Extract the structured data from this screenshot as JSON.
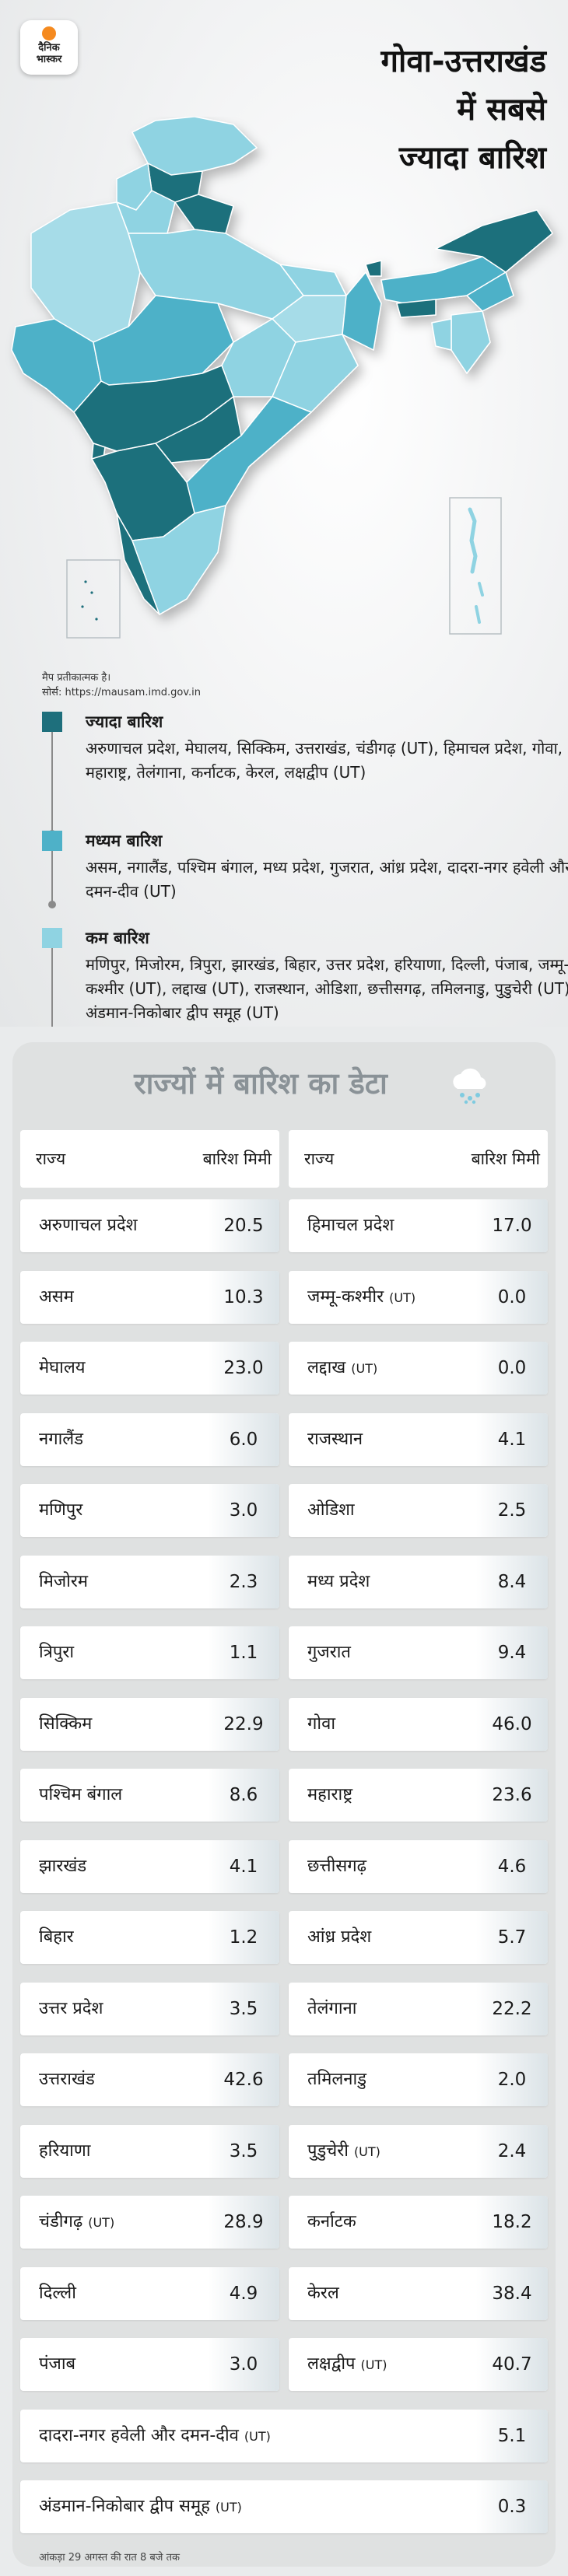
{
  "brand": {
    "line1": "दैनिक",
    "line2": "भास्कर"
  },
  "headline": [
    "गोवा-उत्तराखंड",
    "में सबसे",
    "ज्यादा बारिश"
  ],
  "map_note": "मैप प्रतीकात्मक है।",
  "map_source": "सोर्स: https://mausam.imd.gov.in",
  "legend": [
    {
      "title": "ज्यादा बारिश",
      "color": "#1e6f7c",
      "text": "अरुणाचल प्रदेश, मेघालय, सिक्किम, उत्तराखंड, चंडीगढ़ (UT), हिमाचल प्रदेश, गोवा, महाराष्ट्र, तेलंगाना, कर्नाटक, केरल, लक्षद्वीप (UT)"
    },
    {
      "title": "मध्यम बारिश",
      "color": "#4eb1c8",
      "text": "असम, नगालैंड, पश्चिम बंगाल, मध्य प्रदेश, गुजरात, आंध्र प्रदेश, दादरा-नगर हवेली और दमन-दीव (UT)"
    },
    {
      "title": "कम बारिश",
      "color": "#8fd3e2",
      "text": "मणिपुर, मिजोरम, त्रिपुरा, झारखंड, बिहार, उत्तर प्रदेश, हरियाणा, दिल्ली, पंजाब, जम्मू-कश्मीर (UT), लद्दाख (UT), राजस्थान, ओडिशा, छत्तीसगढ़, तमिलनाडु, पुडुचेरी (UT), अंडमान-निकोबार द्वीप समूह (UT)"
    }
  ],
  "table": {
    "title": "राज्यों में बारिश का डेटा",
    "col_state": "राज्य",
    "col_rain": "बारिश मिमी",
    "left": [
      {
        "name": "अरुणाचल प्रदेश",
        "ut": "",
        "value": "20.5"
      },
      {
        "name": "असम",
        "ut": "",
        "value": "10.3"
      },
      {
        "name": "मेघालय",
        "ut": "",
        "value": "23.0"
      },
      {
        "name": "नगालैंड",
        "ut": "",
        "value": "6.0"
      },
      {
        "name": "मणिपुर",
        "ut": "",
        "value": "3.0"
      },
      {
        "name": "मिजोरम",
        "ut": "",
        "value": "2.3"
      },
      {
        "name": "त्रिपुरा",
        "ut": "",
        "value": "1.1"
      },
      {
        "name": "सिक्किम",
        "ut": "",
        "value": "22.9"
      },
      {
        "name": "पश्चिम बंगाल",
        "ut": "",
        "value": "8.6"
      },
      {
        "name": "झारखंड",
        "ut": "",
        "value": "4.1"
      },
      {
        "name": "बिहार",
        "ut": "",
        "value": "1.2"
      },
      {
        "name": "उत्तर प्रदेश",
        "ut": "",
        "value": "3.5"
      },
      {
        "name": "उत्तराखंड",
        "ut": "",
        "value": "42.6"
      },
      {
        "name": "हरियाणा",
        "ut": "",
        "value": "3.5"
      },
      {
        "name": "चंडीगढ़",
        "ut": "(UT)",
        "value": "28.9"
      },
      {
        "name": "दिल्ली",
        "ut": "",
        "value": "4.9"
      },
      {
        "name": "पंजाब",
        "ut": "",
        "value": "3.0"
      }
    ],
    "right": [
      {
        "name": "हिमाचल प्रदेश",
        "ut": "",
        "value": "17.0"
      },
      {
        "name": "जम्मू-कश्मीर",
        "ut": "(UT)",
        "value": "0.0"
      },
      {
        "name": "लद्दाख",
        "ut": "(UT)",
        "value": "0.0"
      },
      {
        "name": "राजस्थान",
        "ut": "",
        "value": "4.1"
      },
      {
        "name": "ओडिशा",
        "ut": "",
        "value": "2.5"
      },
      {
        "name": "मध्य प्रदेश",
        "ut": "",
        "value": "8.4"
      },
      {
        "name": "गुजरात",
        "ut": "",
        "value": "9.4"
      },
      {
        "name": "गोवा",
        "ut": "",
        "value": "46.0"
      },
      {
        "name": "महाराष्ट्र",
        "ut": "",
        "value": "23.6"
      },
      {
        "name": "छत्तीसगढ़",
        "ut": "",
        "value": "4.6"
      },
      {
        "name": "आंध्र प्रदेश",
        "ut": "",
        "value": "5.7"
      },
      {
        "name": "तेलंगाना",
        "ut": "",
        "value": "22.2"
      },
      {
        "name": "तमिलनाडु",
        "ut": "",
        "value": "2.0"
      },
      {
        "name": "पुडुचेरी",
        "ut": "(UT)",
        "value": "2.4"
      },
      {
        "name": "कर्नाटक",
        "ut": "",
        "value": "18.2"
      },
      {
        "name": "केरल",
        "ut": "",
        "value": "38.4"
      },
      {
        "name": "लक्षद्वीप",
        "ut": "(UT)",
        "value": "40.7"
      }
    ],
    "full": [
      {
        "name": "दादरा-नगर हवेली और दमन-दीव",
        "ut": "(UT)",
        "value": "5.1"
      },
      {
        "name": "अंडमान-निकोबार द्वीप समूह",
        "ut": "(UT)",
        "value": "0.3"
      }
    ]
  },
  "footnote": "आंकड़ा 29 अगस्त की रात 8 बजे तक"
}
